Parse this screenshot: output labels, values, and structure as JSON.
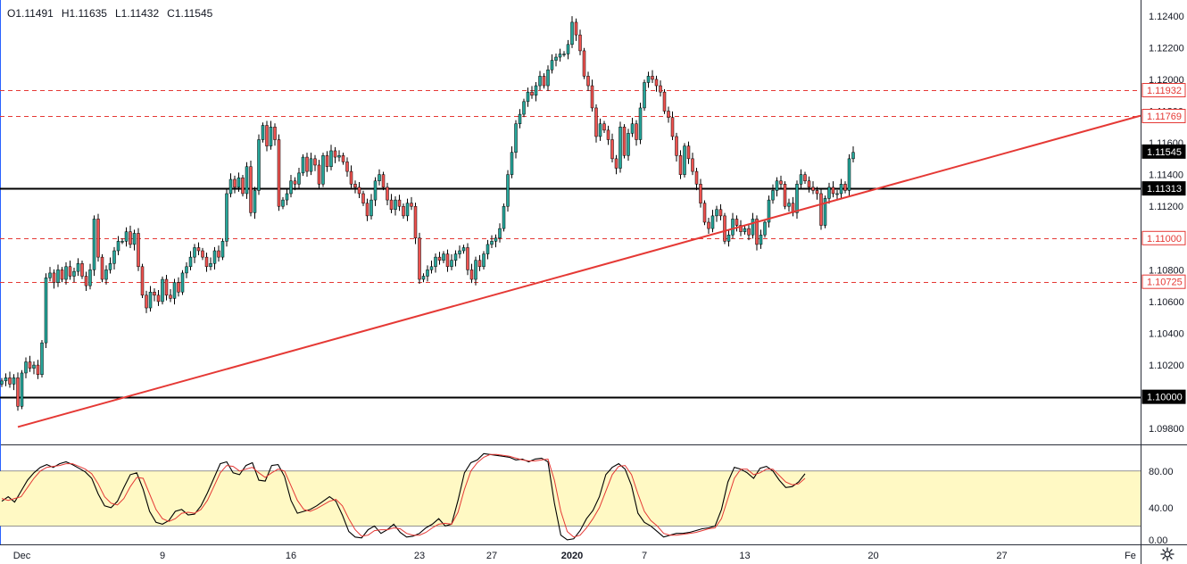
{
  "ohlc": {
    "open": "O1.11491",
    "high": "H1.11635",
    "low": "L1.11432",
    "close": "C1.11545"
  },
  "colors": {
    "up": "#26a69a",
    "down": "#ef5350",
    "wick": "#000000",
    "trend": "#e53935",
    "level_dashed": "#e53935",
    "level_solid": "#000000",
    "current": "#000000",
    "stoch_k": "#000000",
    "stoch_d": "#e53935",
    "stoch_band": "#fff9c4",
    "axis_text": "#131722",
    "settings": "gear-icon"
  },
  "chart_data": [
    {
      "type": "candlestick",
      "x_labels": [
        "Dec",
        "9",
        "16",
        "23",
        "27",
        "2020",
        "7",
        "13",
        "20",
        "27",
        "Fe"
      ],
      "y_ticks": [
        "1.12400",
        "1.12200",
        "1.12000",
        "1.11800",
        "1.11600",
        "1.11400",
        "1.11200",
        "1.11000",
        "1.10800",
        "1.10600",
        "1.10400",
        "1.10200",
        "1.10000",
        "1.09800"
      ],
      "ylim": [
        1.097,
        1.125
      ],
      "close": [
        1.101,
        1.1012,
        1.1008,
        1.1012,
        1.0994,
        1.1015,
        1.1022,
        1.1018,
        1.102,
        1.1014,
        1.1034,
        1.1075,
        1.1078,
        1.1072,
        1.108,
        1.1074,
        1.1082,
        1.1076,
        1.1079,
        1.1084,
        1.1076,
        1.107,
        1.108,
        1.1112,
        1.1088,
        1.1074,
        1.108,
        1.1084,
        1.1092,
        1.1098,
        1.1098,
        1.1104,
        1.1096,
        1.1103,
        1.1082,
        1.1064,
        1.1056,
        1.1066,
        1.1064,
        1.106,
        1.1074,
        1.1064,
        1.1062,
        1.1072,
        1.1066,
        1.1078,
        1.1082,
        1.1088,
        1.1094,
        1.1092,
        1.1088,
        1.1082,
        1.1084,
        1.1092,
        1.1088,
        1.1098,
        1.1128,
        1.1137,
        1.1132,
        1.1138,
        1.1128,
        1.1145,
        1.1116,
        1.113,
        1.1162,
        1.1171,
        1.1158,
        1.117,
        1.1162,
        1.112,
        1.1124,
        1.1128,
        1.1136,
        1.1134,
        1.1141,
        1.1151,
        1.1142,
        1.115,
        1.1146,
        1.1134,
        1.1152,
        1.1145,
        1.1155,
        1.1151,
        1.1152,
        1.1148,
        1.1142,
        1.1134,
        1.1132,
        1.1128,
        1.1122,
        1.1114,
        1.1124,
        1.1136,
        1.114,
        1.1132,
        1.1124,
        1.1118,
        1.1124,
        1.112,
        1.1114,
        1.1122,
        1.112,
        1.11,
        1.1074,
        1.1076,
        1.108,
        1.1082,
        1.1088,
        1.1086,
        1.109,
        1.1082,
        1.1086,
        1.109,
        1.1092,
        1.1094,
        1.108,
        1.1074,
        1.1086,
        1.1082,
        1.109,
        1.1096,
        1.1098,
        1.11,
        1.1106,
        1.112,
        1.114,
        1.1154,
        1.1172,
        1.1178,
        1.1186,
        1.1192,
        1.119,
        1.1196,
        1.1202,
        1.1196,
        1.1206,
        1.1212,
        1.1214,
        1.1216,
        1.1216,
        1.1222,
        1.1236,
        1.1228,
        1.1218,
        1.1202,
        1.1196,
        1.1182,
        1.1164,
        1.1172,
        1.1168,
        1.1162,
        1.115,
        1.1144,
        1.117,
        1.1152,
        1.1166,
        1.1172,
        1.1162,
        1.1182,
        1.1198,
        1.1202,
        1.12,
        1.1196,
        1.1192,
        1.118,
        1.1176,
        1.1164,
        1.1152,
        1.114,
        1.1158,
        1.115,
        1.1142,
        1.1134,
        1.1122,
        1.111,
        1.1106,
        1.1114,
        1.1118,
        1.1114,
        1.1098,
        1.1102,
        1.1112,
        1.1108,
        1.1104,
        1.1106,
        1.1102,
        1.1112,
        1.1096,
        1.1102,
        1.111,
        1.1124,
        1.113,
        1.1136,
        1.1134,
        1.112,
        1.1122,
        1.1116,
        1.1134,
        1.114,
        1.1136,
        1.1132,
        1.113,
        1.1128,
        1.1108,
        1.1125,
        1.1132,
        1.1128,
        1.1128,
        1.1134,
        1.113,
        1.115,
        1.1154
      ],
      "horizontal_levels": [
        {
          "price": 1.11932,
          "label": "1.11932",
          "style": "dashed"
        },
        {
          "price": 1.11769,
          "label": "1.11769",
          "style": "dashed"
        },
        {
          "price": 1.11545,
          "label": "1.11545",
          "style": "current"
        },
        {
          "price": 1.11313,
          "label": "1.11313",
          "style": "solid"
        },
        {
          "price": 1.11,
          "label": "1.11000",
          "style": "dashed"
        },
        {
          "price": 1.10725,
          "label": "1.10725",
          "style": "dashed"
        },
        {
          "price": 1.1,
          "label": "1.10000",
          "style": "solid"
        }
      ],
      "trendline": {
        "from_bar": 4,
        "from_price": 1.0981,
        "to_bar": 319,
        "to_price": 1.1202
      }
    },
    {
      "type": "line",
      "y_ticks": [
        "80.00",
        "40.00",
        "0.00"
      ],
      "ylim": [
        0,
        108
      ],
      "band": [
        20,
        80
      ],
      "series": [
        {
          "values": [
            47,
            52,
            46,
            58,
            70,
            78,
            84,
            87,
            84,
            88,
            90,
            87,
            83,
            79,
            72,
            55,
            42,
            40,
            47,
            62,
            76,
            78,
            60,
            36,
            24,
            22,
            26,
            36,
            38,
            32,
            33,
            42,
            56,
            72,
            88,
            90,
            78,
            76,
            86,
            89,
            70,
            69,
            86,
            87,
            74,
            48,
            34,
            36,
            38,
            42,
            47,
            52,
            47,
            32,
            14,
            8,
            7,
            16,
            20,
            12,
            16,
            22,
            13,
            8,
            9,
            12,
            18,
            22,
            28,
            20,
            22,
            48,
            78,
            89,
            92,
            99,
            98,
            97,
            96,
            95,
            92,
            93,
            90,
            93,
            94,
            90,
            45,
            10,
            5,
            6,
            15,
            28,
            37,
            52,
            76,
            84,
            88,
            82,
            64,
            34,
            24,
            20,
            14,
            8,
            10,
            12,
            12,
            13,
            15,
            17,
            18,
            20,
            38,
            68,
            84,
            82,
            78,
            72,
            83,
            85,
            80,
            70,
            62,
            63,
            68,
            77
          ]
        },
        {
          "values": [
            50,
            48,
            50,
            52,
            62,
            72,
            80,
            84,
            85,
            86,
            88,
            88,
            85,
            82,
            77,
            66,
            52,
            45,
            43,
            50,
            63,
            73,
            72,
            55,
            38,
            28,
            25,
            28,
            34,
            35,
            34,
            38,
            48,
            63,
            78,
            86,
            85,
            80,
            82,
            84,
            78,
            73,
            78,
            82,
            80,
            64,
            48,
            38,
            36,
            39,
            43,
            47,
            49,
            42,
            28,
            16,
            9,
            10,
            15,
            16,
            16,
            18,
            17,
            12,
            10,
            10,
            13,
            18,
            22,
            23,
            22,
            35,
            60,
            80,
            89,
            95,
            98,
            98,
            97,
            96,
            94,
            92,
            91,
            91,
            92,
            93,
            70,
            36,
            14,
            8,
            10,
            18,
            28,
            40,
            58,
            76,
            85,
            86,
            76,
            55,
            36,
            26,
            20,
            12,
            10,
            10,
            11,
            12,
            13,
            15,
            17,
            18,
            28,
            50,
            72,
            82,
            82,
            76,
            78,
            82,
            82,
            75,
            68,
            65,
            66,
            72
          ]
        }
      ]
    }
  ]
}
